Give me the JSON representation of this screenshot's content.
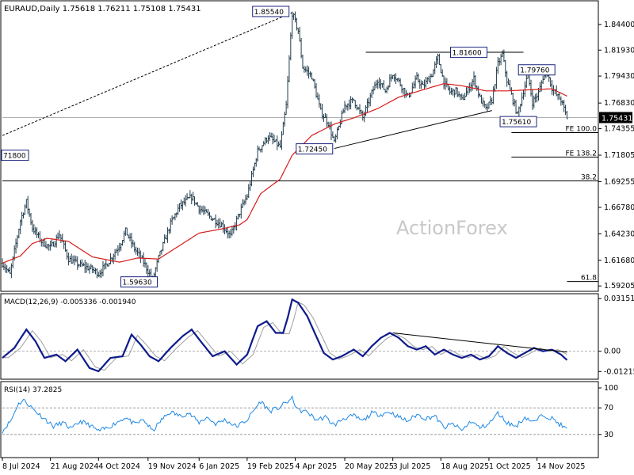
{
  "chart_data": {
    "type": "line",
    "symbol_header": "EURAUD,Daily  1.75618 1.76211 1.75108 1.75431",
    "watermark": "ActionForex",
    "price_axis": {
      "ylim": [
        1.5884,
        1.863
      ],
      "ticks": [
        "1.84400",
        "1.81930",
        "1.79430",
        "1.76830",
        "1.74355",
        "1.71805",
        "1.69255",
        "1.66780",
        "1.64230",
        "1.61680",
        "1.59205"
      ],
      "current_price": "1.75431"
    },
    "x_axis": {
      "bar_count": 390,
      "tick_labels": [
        {
          "label": "8 Jul 2024",
          "bar": 0
        },
        {
          "label": "21 Aug 2024",
          "bar": 32
        },
        {
          "label": "4 Oct 2024",
          "bar": 64
        },
        {
          "label": "19 Nov 2024",
          "bar": 97
        },
        {
          "label": "6 Jan 2025",
          "bar": 131
        },
        {
          "label": "19 Feb 2025",
          "bar": 163
        },
        {
          "label": "4 Apr 2025",
          "bar": 195
        },
        {
          "label": "20 May 2025",
          "bar": 228
        },
        {
          "label": "3 Jul 2025",
          "bar": 260
        },
        {
          "label": "18 Aug 2025",
          "bar": 292
        },
        {
          "label": "1 Oct 2025",
          "bar": 324
        },
        {
          "label": "14 Nov 2025",
          "bar": 356
        }
      ]
    },
    "price_anchors": [
      [
        0,
        1.614
      ],
      [
        5,
        1.603
      ],
      [
        12,
        1.655
      ],
      [
        16,
        1.673
      ],
      [
        20,
        1.648
      ],
      [
        26,
        1.635
      ],
      [
        32,
        1.629
      ],
      [
        38,
        1.642
      ],
      [
        44,
        1.618
      ],
      [
        52,
        1.612
      ],
      [
        60,
        1.608
      ],
      [
        64,
        1.604
      ],
      [
        70,
        1.614
      ],
      [
        78,
        1.631
      ],
      [
        82,
        1.645
      ],
      [
        88,
        1.628
      ],
      [
        94,
        1.615
      ],
      [
        100,
        1.598
      ],
      [
        104,
        1.619
      ],
      [
        112,
        1.652
      ],
      [
        118,
        1.669
      ],
      [
        126,
        1.678
      ],
      [
        131,
        1.667
      ],
      [
        138,
        1.659
      ],
      [
        146,
        1.651
      ],
      [
        152,
        1.64
      ],
      [
        158,
        1.663
      ],
      [
        163,
        1.679
      ],
      [
        170,
        1.722
      ],
      [
        177,
        1.736
      ],
      [
        185,
        1.726
      ],
      [
        189,
        1.766
      ],
      [
        193,
        1.855
      ],
      [
        197,
        1.838
      ],
      [
        200,
        1.803
      ],
      [
        206,
        1.794
      ],
      [
        212,
        1.76
      ],
      [
        217,
        1.749
      ],
      [
        221,
        1.73
      ],
      [
        224,
        1.745
      ],
      [
        228,
        1.766
      ],
      [
        234,
        1.771
      ],
      [
        240,
        1.754
      ],
      [
        246,
        1.778
      ],
      [
        250,
        1.791
      ],
      [
        255,
        1.78
      ],
      [
        260,
        1.797
      ],
      [
        264,
        1.789
      ],
      [
        270,
        1.774
      ],
      [
        276,
        1.792
      ],
      [
        280,
        1.784
      ],
      [
        286,
        1.796
      ],
      [
        290,
        1.812
      ],
      [
        294,
        1.788
      ],
      [
        298,
        1.779
      ],
      [
        302,
        1.78
      ],
      [
        306,
        1.771
      ],
      [
        310,
        1.781
      ],
      [
        314,
        1.792
      ],
      [
        318,
        1.773
      ],
      [
        322,
        1.762
      ],
      [
        326,
        1.771
      ],
      [
        330,
        1.806
      ],
      [
        333,
        1.815
      ],
      [
        336,
        1.79
      ],
      [
        340,
        1.771
      ],
      [
        343,
        1.757
      ],
      [
        347,
        1.78
      ],
      [
        350,
        1.796
      ],
      [
        353,
        1.769
      ],
      [
        357,
        1.778
      ],
      [
        360,
        1.793
      ],
      [
        363,
        1.797
      ],
      [
        366,
        1.783
      ],
      [
        369,
        1.776
      ],
      [
        372,
        1.771
      ],
      [
        376,
        1.754
      ]
    ],
    "moving_average_anchors": [
      [
        0,
        1.614
      ],
      [
        12,
        1.621
      ],
      [
        20,
        1.633
      ],
      [
        30,
        1.638
      ],
      [
        44,
        1.635
      ],
      [
        60,
        1.62
      ],
      [
        78,
        1.615
      ],
      [
        90,
        1.619
      ],
      [
        104,
        1.618
      ],
      [
        118,
        1.631
      ],
      [
        131,
        1.643
      ],
      [
        146,
        1.647
      ],
      [
        158,
        1.651
      ],
      [
        163,
        1.656
      ],
      [
        172,
        1.681
      ],
      [
        185,
        1.695
      ],
      [
        193,
        1.718
      ],
      [
        206,
        1.737
      ],
      [
        221,
        1.748
      ],
      [
        234,
        1.754
      ],
      [
        250,
        1.763
      ],
      [
        264,
        1.774
      ],
      [
        280,
        1.781
      ],
      [
        294,
        1.787
      ],
      [
        306,
        1.785
      ],
      [
        322,
        1.78
      ],
      [
        336,
        1.78
      ],
      [
        350,
        1.781
      ],
      [
        366,
        1.782
      ],
      [
        376,
        1.775
      ]
    ],
    "annotations": [
      {
        "text": "1.85540",
        "bar": 193,
        "price": 1.8554,
        "kind": "box"
      },
      {
        "text": "1.81600",
        "bar": 290,
        "price": 1.816,
        "kind": "box"
      },
      {
        "text": "1.79760",
        "bar": 350,
        "price": 1.7976,
        "kind": "box"
      },
      {
        "text": "1.75610",
        "bar": 342,
        "price": 1.7561,
        "kind": "box"
      },
      {
        "text": "1.72450",
        "bar": 221,
        "price": 1.7245,
        "kind": "box"
      },
      {
        "text": "71800",
        "bar": 21,
        "price": 1.718,
        "kind": "box-left"
      },
      {
        "text": "1.59630",
        "bar": 100,
        "price": 1.5963,
        "kind": "box"
      }
    ],
    "horizontal_levels": [
      {
        "label": "FE 100.0",
        "price": 1.7398,
        "from_bar": 339
      },
      {
        "label": "FE 138.2",
        "price": 1.7163,
        "from_bar": 339
      },
      {
        "label": "38.2",
        "price": 1.6933,
        "from_bar": 0
      },
      {
        "label": "61.8",
        "price": 1.5963,
        "from_bar": 376
      }
    ],
    "trendlines": [
      {
        "from": [
          0,
          1.737
        ],
        "to": [
          193,
          1.8554
        ],
        "style": "dashed"
      },
      {
        "from": [
          221,
          1.7245
        ],
        "to": [
          326,
          1.7611
        ],
        "style": "solid"
      },
      {
        "from": [
          242,
          1.8172
        ],
        "to": [
          347,
          1.8172
        ],
        "style": "solid"
      }
    ],
    "macd": {
      "label": "MACD(12,26,9) -0.005336 -0.001940",
      "ylim": [
        -0.0158,
        0.0335
      ],
      "ticks": [
        "0.03151",
        "0.00",
        "-0.012158"
      ],
      "anchors": [
        [
          0,
          -0.004
        ],
        [
          8,
          0.002
        ],
        [
          16,
          0.013
        ],
        [
          22,
          0.006
        ],
        [
          28,
          -0.004
        ],
        [
          36,
          -0.002
        ],
        [
          42,
          -0.006
        ],
        [
          50,
          0.001
        ],
        [
          58,
          -0.01
        ],
        [
          64,
          -0.012
        ],
        [
          72,
          -0.004
        ],
        [
          80,
          -0.003
        ],
        [
          86,
          0.01
        ],
        [
          92,
          0.004
        ],
        [
          98,
          -0.003
        ],
        [
          104,
          -0.006
        ],
        [
          112,
          0.002
        ],
        [
          120,
          0.009
        ],
        [
          126,
          0.013
        ],
        [
          132,
          0.006
        ],
        [
          140,
          -0.003
        ],
        [
          148,
          0.0
        ],
        [
          156,
          -0.008
        ],
        [
          163,
          -0.002
        ],
        [
          170,
          0.015
        ],
        [
          176,
          0.018
        ],
        [
          182,
          0.011
        ],
        [
          187,
          0.011
        ],
        [
          190,
          0.02
        ],
        [
          193,
          0.031
        ],
        [
          197,
          0.029
        ],
        [
          203,
          0.021
        ],
        [
          209,
          0.009
        ],
        [
          214,
          -0.001
        ],
        [
          220,
          -0.005
        ],
        [
          226,
          -0.003
        ],
        [
          234,
          0.001
        ],
        [
          240,
          -0.003
        ],
        [
          246,
          0.003
        ],
        [
          252,
          0.008
        ],
        [
          258,
          0.011
        ],
        [
          264,
          0.008
        ],
        [
          270,
          0.003
        ],
        [
          276,
          0.001
        ],
        [
          282,
          0.003
        ],
        [
          288,
          -0.002
        ],
        [
          294,
          0.001
        ],
        [
          300,
          -0.002
        ],
        [
          306,
          -0.004
        ],
        [
          312,
          -0.002
        ],
        [
          318,
          -0.005
        ],
        [
          324,
          -0.003
        ],
        [
          330,
          0.003
        ],
        [
          336,
          -0.001
        ],
        [
          342,
          -0.004
        ],
        [
          348,
          -0.001
        ],
        [
          354,
          0.002
        ],
        [
          360,
          0.0
        ],
        [
          366,
          0.001
        ],
        [
          372,
          -0.002
        ],
        [
          376,
          -0.0053
        ]
      ],
      "signal_shift_bars": 4,
      "trendline": {
        "from": [
          260,
          0.011
        ],
        "to": [
          376,
          -0.0005
        ]
      }
    },
    "rsi": {
      "label": "RSI(14) 37.2825",
      "ylim": [
        0,
        100
      ],
      "ticks": [
        "100",
        "70",
        "30"
      ],
      "levels": [
        70,
        30
      ],
      "anchors": [
        [
          0,
          35
        ],
        [
          6,
          52
        ],
        [
          10,
          74
        ],
        [
          14,
          82
        ],
        [
          18,
          74
        ],
        [
          22,
          65
        ],
        [
          28,
          54
        ],
        [
          34,
          42
        ],
        [
          40,
          48
        ],
        [
          46,
          38
        ],
        [
          52,
          50
        ],
        [
          58,
          44
        ],
        [
          64,
          35
        ],
        [
          70,
          40
        ],
        [
          76,
          48
        ],
        [
          82,
          56
        ],
        [
          88,
          45
        ],
        [
          94,
          52
        ],
        [
          100,
          35
        ],
        [
          106,
          52
        ],
        [
          112,
          64
        ],
        [
          118,
          58
        ],
        [
          124,
          62
        ],
        [
          131,
          48
        ],
        [
          136,
          56
        ],
        [
          142,
          46
        ],
        [
          148,
          52
        ],
        [
          156,
          42
        ],
        [
          163,
          52
        ],
        [
          168,
          68
        ],
        [
          172,
          80
        ],
        [
          178,
          65
        ],
        [
          184,
          70
        ],
        [
          189,
          78
        ],
        [
          193,
          84
        ],
        [
          197,
          66
        ],
        [
          203,
          64
        ],
        [
          209,
          52
        ],
        [
          215,
          56
        ],
        [
          221,
          44
        ],
        [
          227,
          54
        ],
        [
          234,
          58
        ],
        [
          240,
          50
        ],
        [
          246,
          62
        ],
        [
          252,
          60
        ],
        [
          258,
          64
        ],
        [
          264,
          56
        ],
        [
          270,
          50
        ],
        [
          276,
          60
        ],
        [
          282,
          54
        ],
        [
          288,
          58
        ],
        [
          294,
          40
        ],
        [
          300,
          46
        ],
        [
          306,
          36
        ],
        [
          312,
          50
        ],
        [
          318,
          40
        ],
        [
          324,
          46
        ],
        [
          330,
          62
        ],
        [
          336,
          48
        ],
        [
          342,
          42
        ],
        [
          348,
          56
        ],
        [
          354,
          48
        ],
        [
          360,
          60
        ],
        [
          366,
          54
        ],
        [
          372,
          44
        ],
        [
          376,
          37.3
        ]
      ]
    }
  }
}
